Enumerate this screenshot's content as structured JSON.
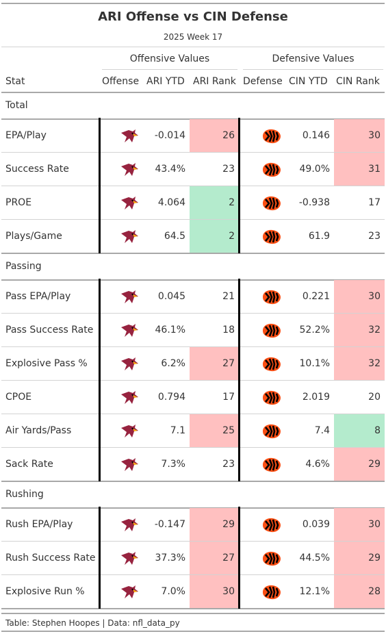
{
  "title": "ARI Offense vs CIN Defense",
  "subtitle": "2025 Week 17",
  "spanners": {
    "offense": "Offensive Values",
    "defense": "Defensive Values"
  },
  "columns": {
    "stat": "Stat",
    "offense": "Offense",
    "ari_ytd": "ARI YTD",
    "ari_rank": "ARI Rank",
    "defense": "Defense",
    "cin_ytd": "CIN YTD",
    "cin_rank": "CIN Rank"
  },
  "logos": {
    "offense": "cardinals-logo-icon",
    "defense": "bengals-logo-icon"
  },
  "colors": {
    "bad": "#ffc0c0",
    "good": "#b4ebcd",
    "border": "#000000"
  },
  "groups": [
    {
      "name": "Total",
      "rows": [
        {
          "stat": "EPA/Play",
          "ari_ytd": "-0.014",
          "ari_rank": "26",
          "ari_shade": "bad",
          "cin_ytd": "0.146",
          "cin_rank": "30",
          "cin_shade": "bad"
        },
        {
          "stat": "Success Rate",
          "ari_ytd": "43.4%",
          "ari_rank": "23",
          "ari_shade": "",
          "cin_ytd": "49.0%",
          "cin_rank": "31",
          "cin_shade": "bad"
        },
        {
          "stat": "PROE",
          "ari_ytd": "4.064",
          "ari_rank": "2",
          "ari_shade": "good",
          "cin_ytd": "-0.938",
          "cin_rank": "17",
          "cin_shade": ""
        },
        {
          "stat": "Plays/Game",
          "ari_ytd": "64.5",
          "ari_rank": "2",
          "ari_shade": "good",
          "cin_ytd": "61.9",
          "cin_rank": "23",
          "cin_shade": ""
        }
      ]
    },
    {
      "name": "Passing",
      "rows": [
        {
          "stat": "Pass EPA/Play",
          "ari_ytd": "0.045",
          "ari_rank": "21",
          "ari_shade": "",
          "cin_ytd": "0.221",
          "cin_rank": "30",
          "cin_shade": "bad"
        },
        {
          "stat": "Pass Success Rate",
          "ari_ytd": "46.1%",
          "ari_rank": "18",
          "ari_shade": "",
          "cin_ytd": "52.2%",
          "cin_rank": "32",
          "cin_shade": "bad"
        },
        {
          "stat": "Explosive Pass %",
          "ari_ytd": "6.2%",
          "ari_rank": "27",
          "ari_shade": "bad",
          "cin_ytd": "10.1%",
          "cin_rank": "32",
          "cin_shade": "bad"
        },
        {
          "stat": "CPOE",
          "ari_ytd": "0.794",
          "ari_rank": "17",
          "ari_shade": "",
          "cin_ytd": "2.019",
          "cin_rank": "20",
          "cin_shade": ""
        },
        {
          "stat": "Air Yards/Pass",
          "ari_ytd": "7.1",
          "ari_rank": "25",
          "ari_shade": "bad",
          "cin_ytd": "7.4",
          "cin_rank": "8",
          "cin_shade": "good"
        },
        {
          "stat": "Sack Rate",
          "ari_ytd": "7.3%",
          "ari_rank": "23",
          "ari_shade": "",
          "cin_ytd": "4.6%",
          "cin_rank": "29",
          "cin_shade": "bad"
        }
      ]
    },
    {
      "name": "Rushing",
      "rows": [
        {
          "stat": "Rush EPA/Play",
          "ari_ytd": "-0.147",
          "ari_rank": "29",
          "ari_shade": "bad",
          "cin_ytd": "0.039",
          "cin_rank": "30",
          "cin_shade": "bad"
        },
        {
          "stat": "Rush Success Rate",
          "ari_ytd": "37.3%",
          "ari_rank": "27",
          "ari_shade": "bad",
          "cin_ytd": "44.5%",
          "cin_rank": "29",
          "cin_shade": "bad"
        },
        {
          "stat": "Explosive Run %",
          "ari_ytd": "7.0%",
          "ari_rank": "30",
          "ari_shade": "bad",
          "cin_ytd": "12.1%",
          "cin_rank": "28",
          "cin_shade": "bad"
        }
      ]
    }
  ],
  "footer": "Table: Stephen Hoopes | Data: nfl_data_py"
}
